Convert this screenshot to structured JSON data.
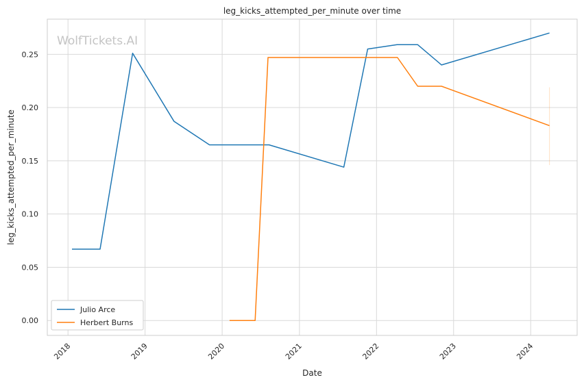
{
  "chart_data": {
    "type": "line",
    "title": "leg_kicks_attempted_per_minute over time",
    "xlabel": "Date",
    "ylabel": "leg_kicks_attempted_per_minute",
    "watermark": "WolfTickets.AI",
    "x_ticks": [
      "2018",
      "2019",
      "2020",
      "2021",
      "2022",
      "2023",
      "2024"
    ],
    "y_ticks": [
      "0.00",
      "0.05",
      "0.10",
      "0.15",
      "0.20",
      "0.25"
    ],
    "xlim": [
      "2017-09-25",
      "2024-08-08"
    ],
    "ylim": [
      -0.014,
      0.283
    ],
    "grid": true,
    "legend_position": "lower-left",
    "series": [
      {
        "name": "Julio Arce",
        "color": "#1f77b4",
        "x": [
          "2018-01-20",
          "2018-06-02",
          "2018-11-03",
          "2019-05-18",
          "2019-11-02",
          "2020-08-10",
          "2021-07-30",
          "2021-11-20",
          "2022-04-08",
          "2022-07-15",
          "2022-11-05",
          "2024-03-30"
        ],
        "y": [
          0.067,
          0.067,
          0.251,
          0.187,
          0.165,
          0.165,
          0.144,
          0.255,
          0.259,
          0.259,
          0.24,
          0.27
        ]
      },
      {
        "name": "Herbert Burns",
        "color": "#ff7f0e",
        "x": [
          "2020-02-05",
          "2020-06-05",
          "2020-08-05",
          "2022-04-10",
          "2022-07-15",
          "2022-11-05",
          "2024-03-30"
        ],
        "y": [
          0.0,
          0.0,
          0.247,
          0.247,
          0.22,
          0.22,
          0.183
        ]
      }
    ]
  }
}
